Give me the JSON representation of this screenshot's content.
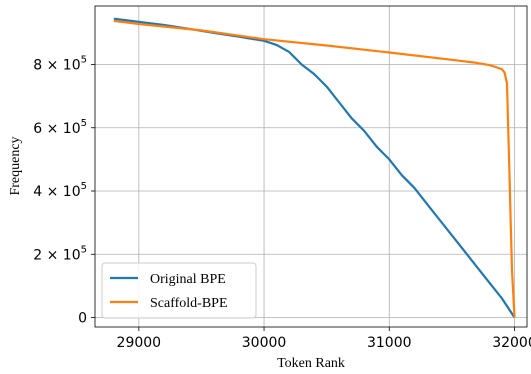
{
  "chart_data": {
    "type": "line",
    "xlabel": "Token Rank",
    "ylabel": "Frequency",
    "xlim": [
      28650,
      32100
    ],
    "ylim": [
      -30000,
      985000
    ],
    "x_ticks": [
      29000,
      30000,
      31000,
      32000
    ],
    "x_tick_labels": [
      "29000",
      "30000",
      "31000",
      "32000"
    ],
    "y_ticks": [
      0,
      200000,
      400000,
      600000,
      800000
    ],
    "y_tick_labels": [
      {
        "base": "0",
        "exp": ""
      },
      {
        "base": "2 × 10",
        "exp": "5"
      },
      {
        "base": "4 × 10",
        "exp": "5"
      },
      {
        "base": "6 × 10",
        "exp": "5"
      },
      {
        "base": "8 × 10",
        "exp": "5"
      }
    ],
    "grid": true,
    "legend_position": "lower-left",
    "series": [
      {
        "name": "Original BPE",
        "color": "#1f77b4",
        "x": [
          28800,
          29000,
          29200,
          29400,
          29600,
          29800,
          30000,
          30100,
          30200,
          30300,
          30400,
          30500,
          30600,
          30700,
          30800,
          30900,
          31000,
          31100,
          31200,
          31300,
          31400,
          31500,
          31600,
          31700,
          31800,
          31900,
          32000
        ],
        "y": [
          945000,
          935000,
          925000,
          913000,
          900000,
          888000,
          875000,
          862000,
          840000,
          800000,
          770000,
          730000,
          680000,
          630000,
          590000,
          540000,
          500000,
          450000,
          410000,
          360000,
          310000,
          260000,
          210000,
          160000,
          110000,
          60000,
          0
        ]
      },
      {
        "name": "Scaffold-BPE",
        "color": "#ff7f0e",
        "x": [
          28800,
          29000,
          29500,
          30000,
          30500,
          31000,
          31500,
          31700,
          31800,
          31850,
          31900,
          31920,
          31940,
          31950,
          31960,
          31970,
          31980,
          32000
        ],
        "y": [
          938000,
          928000,
          908000,
          880000,
          860000,
          838000,
          815000,
          805000,
          798000,
          792000,
          785000,
          775000,
          740000,
          600000,
          450000,
          300000,
          150000,
          0
        ]
      }
    ]
  }
}
